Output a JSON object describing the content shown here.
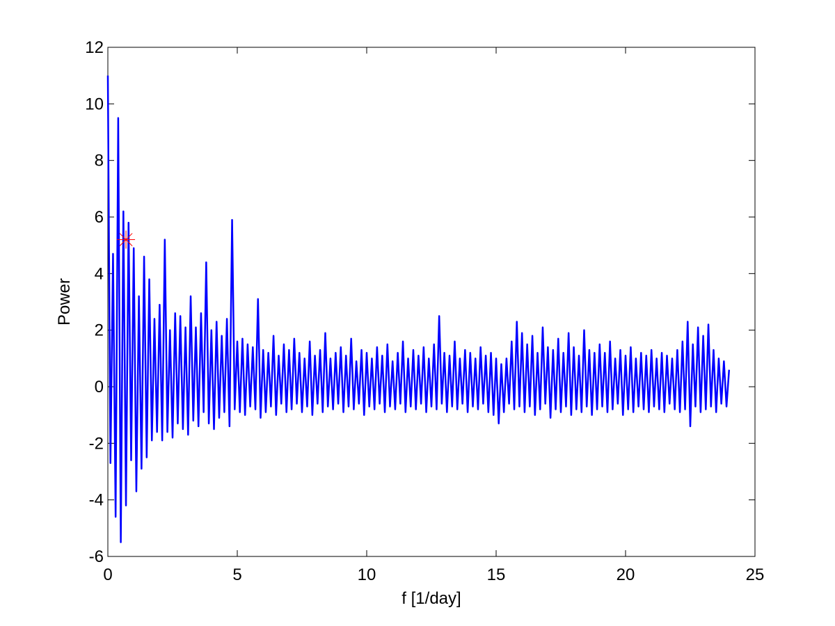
{
  "chart_data": {
    "type": "line",
    "xlabel": "f [1/day]",
    "ylabel": "Power",
    "xlim": [
      0,
      25
    ],
    "ylim": [
      -6,
      12
    ],
    "xticks": [
      0,
      5,
      10,
      15,
      20,
      25
    ],
    "yticks": [
      -6,
      -4,
      -2,
      0,
      2,
      4,
      6,
      8,
      10,
      12
    ],
    "grid": false,
    "x": [
      0,
      0.1,
      0.2,
      0.3,
      0.4,
      0.5,
      0.6,
      0.7,
      0.8,
      0.9,
      1,
      1.1,
      1.2,
      1.3,
      1.4,
      1.5,
      1.6,
      1.7,
      1.8,
      1.9,
      2,
      2.1,
      2.2,
      2.3,
      2.4,
      2.5,
      2.6,
      2.7,
      2.8,
      2.9,
      3,
      3.1,
      3.2,
      3.3,
      3.4,
      3.5,
      3.6,
      3.7,
      3.8,
      3.9,
      4,
      4.1,
      4.2,
      4.3,
      4.4,
      4.5,
      4.6,
      4.7,
      4.8,
      4.9,
      5,
      5.1,
      5.2,
      5.3,
      5.4,
      5.5,
      5.6,
      5.7,
      5.8,
      5.9,
      6,
      6.1,
      6.2,
      6.3,
      6.4,
      6.5,
      6.6,
      6.7,
      6.8,
      6.9,
      7,
      7.1,
      7.2,
      7.3,
      7.4,
      7.5,
      7.6,
      7.7,
      7.8,
      7.9,
      8,
      8.1,
      8.2,
      8.3,
      8.4,
      8.5,
      8.6,
      8.7,
      8.8,
      8.9,
      9,
      9.1,
      9.2,
      9.3,
      9.4,
      9.5,
      9.6,
      9.7,
      9.8,
      9.9,
      10,
      10.1,
      10.2,
      10.3,
      10.4,
      10.5,
      10.6,
      10.7,
      10.8,
      10.9,
      11,
      11.1,
      11.2,
      11.3,
      11.4,
      11.5,
      11.6,
      11.7,
      11.8,
      11.9,
      12,
      12.1,
      12.2,
      12.3,
      12.4,
      12.5,
      12.6,
      12.7,
      12.8,
      12.9,
      13,
      13.1,
      13.2,
      13.3,
      13.4,
      13.5,
      13.6,
      13.7,
      13.8,
      13.9,
      14,
      14.1,
      14.2,
      14.3,
      14.4,
      14.5,
      14.6,
      14.7,
      14.8,
      14.9,
      15,
      15.1,
      15.2,
      15.3,
      15.4,
      15.5,
      15.6,
      15.7,
      15.8,
      15.9,
      16,
      16.1,
      16.2,
      16.3,
      16.4,
      16.5,
      16.6,
      16.7,
      16.8,
      16.9,
      17,
      17.1,
      17.2,
      17.3,
      17.4,
      17.5,
      17.6,
      17.7,
      17.8,
      17.9,
      18,
      18.1,
      18.2,
      18.3,
      18.4,
      18.5,
      18.6,
      18.7,
      18.8,
      18.9,
      19,
      19.1,
      19.2,
      19.3,
      19.4,
      19.5,
      19.6,
      19.7,
      19.8,
      19.9,
      20,
      20.1,
      20.2,
      20.3,
      20.4,
      20.5,
      20.6,
      20.7,
      20.8,
      20.9,
      21,
      21.1,
      21.2,
      21.3,
      21.4,
      21.5,
      21.6,
      21.7,
      21.8,
      21.9,
      22,
      22.1,
      22.2,
      22.3,
      22.4,
      22.5,
      22.6,
      22.7,
      22.8,
      22.9,
      23,
      23.1,
      23.2,
      23.3,
      23.4,
      23.5,
      23.6,
      23.7,
      23.8,
      23.9,
      24
    ],
    "series": [
      {
        "color": "#0000ff",
        "values": [
          11,
          -2.7,
          4.7,
          -4.6,
          9.5,
          -5.5,
          6.2,
          -4.2,
          5.8,
          -2.6,
          4.9,
          -3.7,
          3.2,
          -2.9,
          4.6,
          -2.5,
          3.8,
          -1.9,
          2.4,
          -1.6,
          2.9,
          -1.9,
          5.2,
          -1.6,
          2.0,
          -1.8,
          2.6,
          -1.3,
          2.5,
          -1.5,
          2.1,
          -1.7,
          3.2,
          -1.2,
          2.1,
          -1.4,
          2.6,
          -0.9,
          4.4,
          -1.3,
          2.0,
          -1.5,
          2.3,
          -1.1,
          1.8,
          -0.9,
          2.4,
          -1.4,
          5.9,
          -0.8,
          1.6,
          -0.9,
          1.7,
          -1.0,
          1.5,
          -0.7,
          1.4,
          -0.8,
          3.1,
          -1.1,
          1.3,
          -0.9,
          1.2,
          -0.7,
          1.8,
          -1.0,
          1.1,
          -0.6,
          1.5,
          -0.9,
          1.3,
          -0.8,
          1.7,
          -0.6,
          1.2,
          -0.9,
          1.0,
          -0.7,
          1.6,
          -1.0,
          1.1,
          -0.6,
          1.3,
          -0.9,
          1.9,
          -0.7,
          1.0,
          -0.8,
          1.2,
          -0.6,
          1.4,
          -0.9,
          1.1,
          -0.7,
          1.7,
          -0.8,
          0.9,
          -0.6,
          1.3,
          -1.0,
          1.2,
          -0.7,
          1.0,
          -0.8,
          1.4,
          -0.6,
          1.1,
          -0.9,
          1.5,
          -0.7,
          0.9,
          -0.8,
          1.2,
          -0.6,
          1.6,
          -0.9,
          1.0,
          -0.7,
          1.3,
          -0.8,
          1.1,
          -0.6,
          1.4,
          -0.9,
          1.0,
          -0.7,
          1.5,
          -0.8,
          2.5,
          -0.6,
          1.2,
          -0.9,
          1.1,
          -0.7,
          1.6,
          -0.8,
          1.0,
          -0.6,
          1.3,
          -0.9,
          1.2,
          -0.7,
          1.0,
          -0.8,
          1.4,
          -0.6,
          1.1,
          -0.9,
          1.2,
          -1.0,
          1.0,
          -1.3,
          0.8,
          -0.9,
          1.0,
          -0.6,
          1.6,
          -0.8,
          2.3,
          -0.7,
          1.9,
          -0.9,
          1.5,
          -0.7,
          1.8,
          -1.0,
          1.2,
          -0.8,
          2.1,
          -0.6,
          1.4,
          -1.1,
          1.3,
          -0.8,
          1.7,
          -0.9,
          1.2,
          -0.7,
          1.9,
          -1.0,
          1.4,
          -0.8,
          1.1,
          -0.9,
          2.0,
          -0.7,
          1.3,
          -1.0,
          1.2,
          -0.8,
          1.5,
          -0.7,
          1.2,
          -0.9,
          1.6,
          -0.8,
          1.0,
          -0.6,
          1.3,
          -1.0,
          1.1,
          -0.8,
          1.4,
          -0.9,
          1.0,
          -0.7,
          1.2,
          -0.8,
          1.1,
          -0.9,
          1.3,
          -0.7,
          1.0,
          -0.8,
          1.2,
          -0.9,
          1.1,
          -0.6,
          1.0,
          -0.8,
          1.3,
          -0.9,
          1.6,
          -0.8,
          2.3,
          -1.4,
          1.5,
          -0.7,
          2.1,
          -0.9,
          1.8,
          -0.8,
          2.2,
          -0.7,
          1.3,
          -0.9,
          1.0,
          -0.6,
          0.9,
          -0.7,
          0.6
        ]
      },
      {
        "color": "#ff0000",
        "marker": "star",
        "x": [
          0.7
        ],
        "values": [
          5.2
        ]
      }
    ]
  }
}
